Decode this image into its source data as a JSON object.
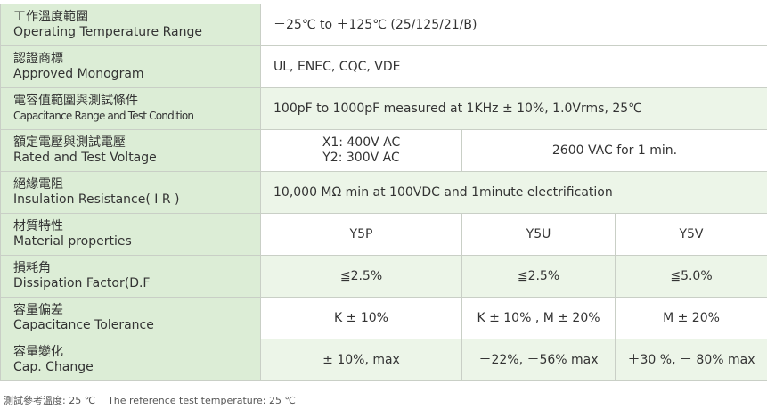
{
  "table": {
    "rows": [
      {
        "label_zh": "工作溫度範圍",
        "label_en": "Operating Temperature Range",
        "cells": [
          [
            "－25℃  to  ＋125℃ (25/125/21/B)"
          ]
        ]
      },
      {
        "label_zh": "認證商標",
        "label_en": "Approved Monogram",
        "cells": [
          [
            "UL, ENEC, CQC, VDE"
          ]
        ]
      },
      {
        "label_zh": "電容值範圍與測試條件",
        "label_en": "Capacitance Range and Test Condition",
        "cells": [
          [
            "100pF  to  1000pF measured at 1KHz ± 10%, 1.0Vrms, 25℃"
          ]
        ]
      },
      {
        "label_zh": "額定電壓與測試電壓",
        "label_en": "Rated and Test Voltage",
        "cells": [
          [
            "X1: 400V AC",
            "Y2: 300V AC"
          ],
          [
            "2600 VAC for 1 min."
          ]
        ]
      },
      {
        "label_zh": "絕緣電阻",
        "label_en": "Insulation Resistance( I R )",
        "cells": [
          [
            "10,000 MΩ  min at 100VDC and 1minute electrification"
          ]
        ]
      },
      {
        "label_zh": "材質特性",
        "label_en": "Material properties",
        "cells": [
          [
            "Y5P"
          ],
          [
            "Y5U"
          ],
          [
            "Y5V"
          ]
        ]
      },
      {
        "label_zh": "損耗角",
        "label_en": "Dissipation Factor(D.F",
        "cells": [
          [
            "≦2.5%"
          ],
          [
            "≦2.5%"
          ],
          [
            "≦5.0%"
          ]
        ]
      },
      {
        "label_zh": "容量偏差",
        "label_en": "Capacitance Tolerance",
        "cells": [
          [
            "K ± 10%"
          ],
          [
            "K ± 10% , M ± 20%"
          ],
          [
            "M ± 20%"
          ]
        ]
      },
      {
        "label_zh": "容量變化",
        "label_en": "Cap. Change",
        "cells": [
          [
            "± 10%, max"
          ],
          [
            "＋22%, －56% max"
          ],
          [
            "＋30 %, － 80% max"
          ]
        ]
      }
    ]
  },
  "footer": {
    "zh": "測試參考溫度: 25 ℃",
    "en": "The reference test temperature: 25 ℃"
  }
}
